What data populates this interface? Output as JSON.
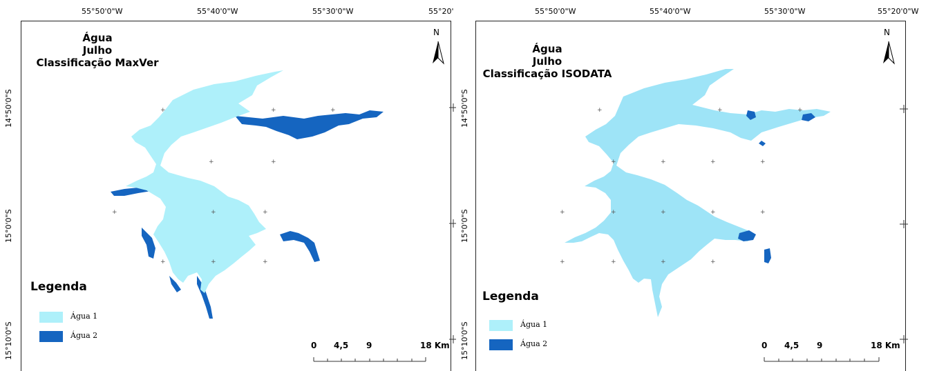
{
  "colors": {
    "agua1": "#aef0fa",
    "agua2": "#1565c0",
    "agua1_alt": "#9ee4f7",
    "frame": "#222222"
  },
  "maps": [
    {
      "title_lines": [
        "Água",
        "Julho",
        "Classificação MaxVer"
      ],
      "lon_labels": [
        "55°50'0\"W",
        "55°40'0\"W",
        "55°30'0\"W",
        "55°20'"
      ],
      "lat_labels": [
        "14°50'0\"S",
        "15°0'0\"S",
        "15°10'0\"S"
      ],
      "north": "N",
      "legend": {
        "title": "Legenda",
        "items": [
          {
            "label": "Água 1"
          },
          {
            "label": "Água 2"
          }
        ]
      },
      "scale": {
        "labels": [
          "0",
          "4,5",
          "9",
          "18 Km"
        ]
      }
    },
    {
      "title_lines": [
        "Água",
        "Julho",
        "Classificação ISODATA"
      ],
      "lon_labels": [
        "55°50'0\"W",
        "55°40'0\"W",
        "55°30'0\"W",
        "55°20'0\"W"
      ],
      "lat_labels": [
        "14°50'0\"S",
        "15°0'0\"S",
        "15°10'0\"S"
      ],
      "north": "N",
      "legend": {
        "title": "Legenda",
        "items": [
          {
            "label": "Água 1"
          },
          {
            "label": "Água 2"
          }
        ]
      },
      "scale": {
        "labels": [
          "0",
          "4,5",
          "9",
          "18 Km"
        ]
      }
    }
  ]
}
